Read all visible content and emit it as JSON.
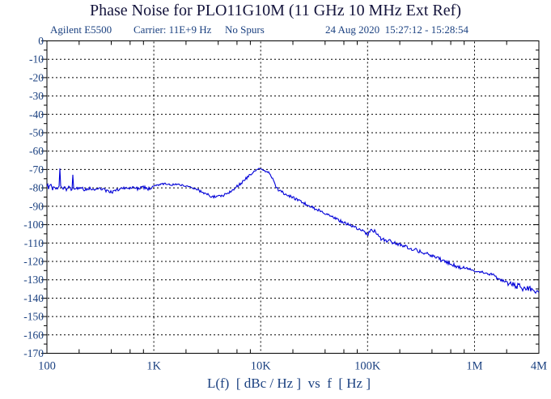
{
  "title": "Phase Noise for PLO11G10M (11 GHz 10 MHz Ext Ref)",
  "header": {
    "instrument": "Agilent E5500",
    "carrier_label": "Carrier: 11E+9 Hz",
    "spurs_label": "No Spurs",
    "datetime": "24 Aug 2020  15:27:12 - 15:28:54"
  },
  "caption": "L(f)  [ dBc / Hz ]  vs  f  [ Hz ]",
  "colors": {
    "background": "#ffffff",
    "title_text": "#14143c",
    "axis_text": "#1a4080",
    "grid": "#000000",
    "frame": "#000000",
    "trace": "#0000d8"
  },
  "chart_data": {
    "type": "line",
    "title": "Phase Noise for PLO11G10M (11 GHz 10 MHz Ext Ref)",
    "xlabel": "f [ Hz ]",
    "ylabel": "L(f) [ dBc / Hz ]",
    "x_axis": {
      "scale": "log",
      "min": 100,
      "max": 4000000,
      "ticks": [
        {
          "value": 100,
          "label": "100"
        },
        {
          "value": 1000,
          "label": "1K"
        },
        {
          "value": 10000,
          "label": "10K"
        },
        {
          "value": 100000,
          "label": "100K"
        },
        {
          "value": 1000000,
          "label": "1M"
        },
        {
          "value": 4000000,
          "label": "4M"
        }
      ],
      "minor_tick_multiples": [
        2,
        4,
        6,
        8
      ]
    },
    "y_axis": {
      "min": -170,
      "max": 0,
      "major_step": 10,
      "minor_step": 5,
      "unit": "dBc/Hz"
    },
    "grid": {
      "style": "dashed",
      "x_lines": [
        1000,
        10000,
        100000,
        1000000
      ]
    },
    "legend": "none",
    "spurs_visible": [
      [
        132,
        -69.5
      ],
      [
        175,
        -72.5
      ]
    ],
    "noise_bands": [
      {
        "f_min": 100,
        "f_max": 950,
        "amp_db": 0.9
      },
      {
        "f_min": 950,
        "f_max": 2600,
        "amp_db": 0.45
      },
      {
        "f_min": 2600,
        "f_max": 9000,
        "amp_db": 0.8
      },
      {
        "f_min": 9000,
        "f_max": 12500,
        "amp_db": 0.35
      },
      {
        "f_min": 12500,
        "f_max": 100000,
        "amp_db": 0.8
      },
      {
        "f_min": 100000,
        "f_max": 1000000,
        "amp_db": 1.0
      },
      {
        "f_min": 1000000,
        "f_max": 2000000,
        "amp_db": 0.7
      },
      {
        "f_min": 2000000,
        "f_max": 4000000,
        "amp_db": 1.8
      }
    ],
    "series": [
      {
        "name": "phase_noise_L(f)",
        "color": "#0000d8",
        "points": [
          [
            100,
            -78
          ],
          [
            104,
            -80
          ],
          [
            108,
            -78.5
          ],
          [
            113,
            -80.5
          ],
          [
            118,
            -79
          ],
          [
            123,
            -80.8
          ],
          [
            128,
            -79.2
          ],
          [
            130,
            -79.6
          ],
          [
            132,
            -69.5
          ],
          [
            134,
            -79.6
          ],
          [
            138,
            -80.6
          ],
          [
            145,
            -79.2
          ],
          [
            152,
            -80.8
          ],
          [
            160,
            -79.6
          ],
          [
            167,
            -80.8
          ],
          [
            172,
            -80.2
          ],
          [
            175,
            -72.5
          ],
          [
            178,
            -80.6
          ],
          [
            185,
            -79.8
          ],
          [
            196,
            -80.6
          ],
          [
            210,
            -80.2
          ],
          [
            228,
            -81
          ],
          [
            250,
            -80.2
          ],
          [
            275,
            -81.4
          ],
          [
            305,
            -79.8
          ],
          [
            340,
            -80.8
          ],
          [
            380,
            -82.4
          ],
          [
            425,
            -82
          ],
          [
            470,
            -80.8
          ],
          [
            520,
            -79.8
          ],
          [
            575,
            -80.6
          ],
          [
            640,
            -79.8
          ],
          [
            715,
            -80.4
          ],
          [
            800,
            -79.6
          ],
          [
            890,
            -80.6
          ],
          [
            1000,
            -79.2
          ],
          [
            1120,
            -78.2
          ],
          [
            1280,
            -77.7
          ],
          [
            1450,
            -78.3
          ],
          [
            1650,
            -77.9
          ],
          [
            1900,
            -78.7
          ],
          [
            2150,
            -79.4
          ],
          [
            2450,
            -80.4
          ],
          [
            2750,
            -81.8
          ],
          [
            3100,
            -83.4
          ],
          [
            3500,
            -84.6
          ],
          [
            3900,
            -85
          ],
          [
            4400,
            -84.1
          ],
          [
            4900,
            -82.8
          ],
          [
            5500,
            -80.9
          ],
          [
            6200,
            -78.5
          ],
          [
            7000,
            -75.8
          ],
          [
            7900,
            -73
          ],
          [
            8700,
            -71.2
          ],
          [
            9300,
            -70
          ],
          [
            9900,
            -69.4
          ],
          [
            10500,
            -70.5
          ],
          [
            11200,
            -71.1
          ],
          [
            12000,
            -71.7
          ],
          [
            12800,
            -74.6
          ],
          [
            13800,
            -79.3
          ],
          [
            15000,
            -81.6
          ],
          [
            16500,
            -82.9
          ],
          [
            18500,
            -84.4
          ],
          [
            21000,
            -85.9
          ],
          [
            24000,
            -87.5
          ],
          [
            27500,
            -89.5
          ],
          [
            31500,
            -91
          ],
          [
            36000,
            -92.5
          ],
          [
            41000,
            -94
          ],
          [
            47000,
            -95.7
          ],
          [
            54000,
            -97.7
          ],
          [
            62000,
            -99.3
          ],
          [
            71000,
            -100.7
          ],
          [
            81000,
            -102.1
          ],
          [
            90000,
            -103.4
          ],
          [
            96000,
            -104.5
          ],
          [
            100000,
            -105.4
          ],
          [
            103000,
            -104.6
          ],
          [
            107000,
            -103.4
          ],
          [
            112000,
            -103.1
          ],
          [
            119000,
            -104.2
          ],
          [
            127000,
            -106.4
          ],
          [
            136000,
            -108.1
          ],
          [
            148000,
            -108.7
          ],
          [
            162000,
            -109.1
          ],
          [
            180000,
            -110.1
          ],
          [
            200000,
            -111
          ],
          [
            225000,
            -111.9
          ],
          [
            255000,
            -112.9
          ],
          [
            290000,
            -114
          ],
          [
            330000,
            -115.2
          ],
          [
            375000,
            -116.4
          ],
          [
            425000,
            -117.7
          ],
          [
            480000,
            -119
          ],
          [
            540000,
            -120.2
          ],
          [
            610000,
            -121.5
          ],
          [
            690000,
            -122.7
          ],
          [
            780000,
            -123.6
          ],
          [
            880000,
            -124.3
          ],
          [
            1000000,
            -124.9
          ],
          [
            1100000,
            -125.5
          ],
          [
            1220000,
            -126.2
          ],
          [
            1350000,
            -126.8
          ],
          [
            1500000,
            -127.1
          ],
          [
            1650000,
            -129.4
          ],
          [
            1900000,
            -131
          ],
          [
            2200000,
            -132.7
          ],
          [
            2600000,
            -133.8
          ],
          [
            3000000,
            -134.6
          ],
          [
            3400000,
            -135.1
          ],
          [
            3700000,
            -135.9
          ],
          [
            4000000,
            -136.4
          ]
        ]
      }
    ]
  }
}
